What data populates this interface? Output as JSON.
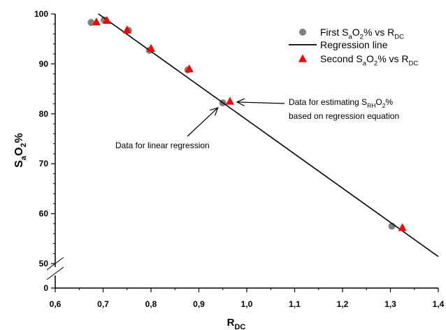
{
  "chart_data": {
    "type": "scatter",
    "title": "",
    "xlabel": {
      "main": "R",
      "sub": "DC"
    },
    "ylabel": {
      "p1": "S",
      "p1sub": "a",
      "p2": "O",
      "p2sub": "2",
      "p3": "%"
    },
    "xlim": [
      0.6,
      1.4
    ],
    "xticks": [
      "0,6",
      "0,7",
      "0,8",
      "0,9",
      "1,0",
      "1,1",
      "1,2",
      "1,3",
      "1,4"
    ],
    "xtick_values": [
      0.6,
      0.7,
      0.8,
      0.9,
      1.0,
      1.1,
      1.2,
      1.3,
      1.4
    ],
    "ylim_upper": [
      50,
      100
    ],
    "yticks": [
      "50",
      "60",
      "70",
      "80",
      "90",
      "100"
    ],
    "ytick_values": [
      50,
      60,
      70,
      80,
      90,
      100
    ],
    "y_break_label": "0",
    "axis_break": true,
    "grid": false,
    "legend_position": "top-right",
    "series": [
      {
        "kind": "points",
        "marker": "circle",
        "color": "#808080",
        "values": [
          [
            0.675,
            98.3
          ],
          [
            0.702,
            98.8
          ],
          [
            0.753,
            96.7
          ],
          [
            0.797,
            92.7
          ],
          [
            0.877,
            88.8
          ],
          [
            0.95,
            82.2
          ],
          [
            1.303,
            57.5
          ]
        ],
        "legend": {
          "p1": "First S",
          "p1sub": "a",
          "p2": "O",
          "p2sub": "2",
          "p3": "% vs R",
          "p3sub": "DC"
        }
      },
      {
        "kind": "line",
        "color": "#000000",
        "x_range": [
          0.69,
          1.4
        ],
        "slope": -68.5,
        "intercept": 147.3,
        "legend": {
          "text": "Regression line"
        }
      },
      {
        "kind": "points",
        "marker": "triangle",
        "color": "#ff0000",
        "values": [
          [
            0.686,
            98.4
          ],
          [
            0.708,
            98.7
          ],
          [
            0.75,
            96.8
          ],
          [
            0.8,
            93.1
          ],
          [
            0.88,
            89.0
          ],
          [
            0.965,
            82.5
          ],
          [
            1.325,
            57.2
          ]
        ],
        "legend": {
          "p1": "Second S",
          "p1sub": "a",
          "p2": "O",
          "p2sub": "2",
          "p3": "% vs R",
          "p3sub": "DC"
        }
      }
    ],
    "annotations": [
      {
        "p1": "Data for estimating S",
        "p1sub": "RH",
        "p2": "O",
        "p2sub": "2",
        "p3": "%",
        "line2": "based on regression equation",
        "points_to": [
          0.965,
          82.5
        ]
      },
      {
        "text": "Data for linear regression",
        "points_to": [
          0.95,
          82.2
        ]
      }
    ]
  }
}
